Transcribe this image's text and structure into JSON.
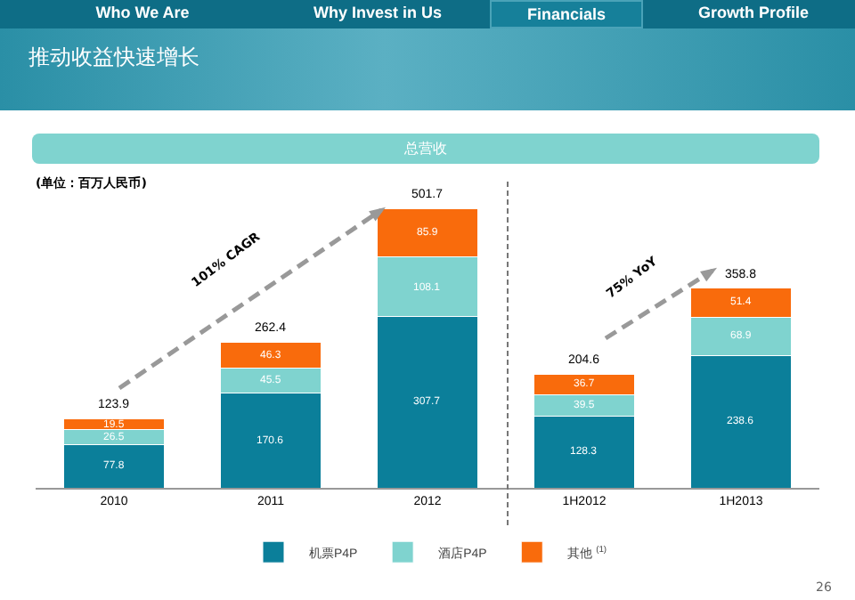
{
  "chart_data": {
    "type": "bar",
    "title": "推动收益快速增长",
    "subtitle": "总营收",
    "categories": [
      "2010",
      "2011",
      "2012",
      "1H2012",
      "1H2013"
    ],
    "stacked": true,
    "data_labels": true,
    "legend": "bottom",
    "series": [
      {
        "name": "机票P4P",
        "color": "#0b7f9a",
        "values": [
          77.8,
          170.6,
          307.7,
          128.3,
          238.6
        ]
      },
      {
        "name": "酒店P4P",
        "color": "#7fd3cf",
        "values": [
          26.5,
          45.5,
          108.1,
          39.5,
          68.9
        ]
      },
      {
        "name": "其他 $^{(1)}$",
        "color": "#f96b0c",
        "values": [
          19.5,
          46.3,
          85.9,
          36.7,
          51.4
        ]
      }
    ],
    "totals": [
      "123.9",
      "262.4",
      "501.7",
      "204.6",
      "358.8"
    ],
    "annotations": [
      "Who We Are",
      "Why Invest in Us",
      "Financials",
      "Growth Profile",
      "(单位：百万人民币)",
      "101% CAGR",
      "75% YoY",
      "26"
    ]
  }
}
